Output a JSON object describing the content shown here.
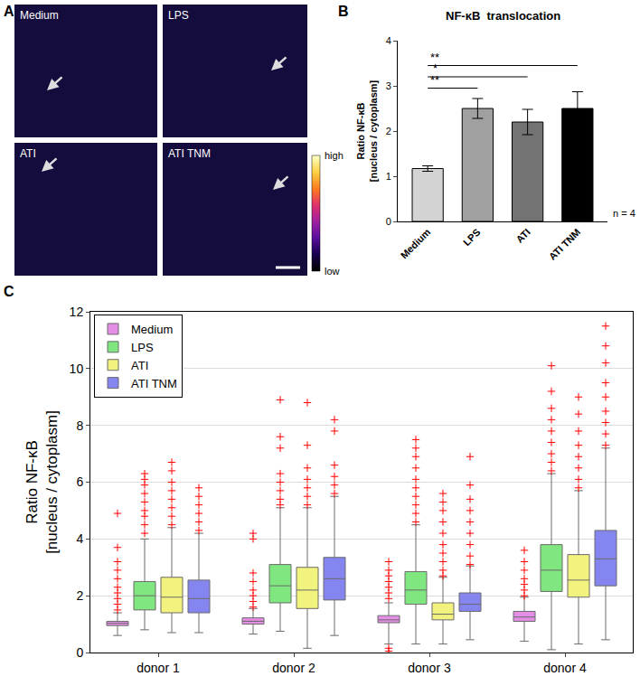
{
  "panel_labels": [
    "A",
    "B",
    "C"
  ],
  "panel_a": {
    "images": [
      {
        "label": "Medium"
      },
      {
        "label": "LPS"
      },
      {
        "label": "ATI"
      },
      {
        "label": "ATI TNM"
      }
    ],
    "colorbar": {
      "colors": [
        "#000000",
        "#1a0050",
        "#5a0f9e",
        "#a020a0",
        "#e0306a",
        "#ff7a20",
        "#ffd040",
        "#ffffc0"
      ],
      "low_label": "low",
      "high_label": "high"
    }
  },
  "chart_data": [
    {
      "type": "bar",
      "title": "NF-κB  translocation",
      "y_label": [
        "Ratio NF-κB",
        "[nucleus / cytoplasm]"
      ],
      "categories": [
        "Medium",
        "LPS",
        "ATI",
        "ATI TNM"
      ],
      "values": [
        1.17,
        2.5,
        2.2,
        2.5
      ],
      "errors": [
        0.06,
        0.22,
        0.28,
        0.37
      ],
      "colors": [
        "#d3d3d3",
        "#a0a0a0",
        "#737373",
        "#000000"
      ],
      "ylim": [
        0,
        4
      ],
      "yticks": [
        0,
        1,
        2,
        3,
        4
      ],
      "grid": false,
      "significance": [
        {
          "from": 0,
          "to": 1,
          "label": "**",
          "y": 2.95
        },
        {
          "from": 0,
          "to": 2,
          "label": "*",
          "y": 3.2
        },
        {
          "from": 0,
          "to": 3,
          "label": "**",
          "y": 3.45
        }
      ],
      "annotations": [
        "n = 4"
      ]
    },
    {
      "type": "box",
      "y_label": [
        "Ratio NF-κB",
        "[nucleus / cytoplasm]"
      ],
      "categories": [
        "donor 1",
        "donor 2",
        "donor 3",
        "donor 4"
      ],
      "ylim": [
        0,
        12
      ],
      "yticks": [
        0,
        2,
        4,
        6,
        8,
        10,
        12
      ],
      "grid": true,
      "legend": "upper left",
      "series": [
        {
          "name": "Medium",
          "color": "#e58ee5",
          "q1": [
            0.95,
            1.0,
            1.05,
            1.1
          ],
          "median": [
            1.03,
            1.1,
            1.15,
            1.25
          ],
          "q3": [
            1.1,
            1.22,
            1.3,
            1.45
          ],
          "lower_whisker": [
            0.6,
            0.65,
            0.3,
            0.4
          ],
          "upper_whisker": [
            1.4,
            1.55,
            1.75,
            1.95
          ],
          "outliers": [
            [
              1.5,
              1.7,
              1.9,
              2.1,
              2.3,
              2.6,
              2.9,
              3.2,
              3.7,
              4.9
            ],
            [
              1.6,
              1.8,
              2.0,
              2.2,
              2.5,
              2.8,
              4.0,
              4.2
            ],
            [
              0.05,
              0.15,
              1.9,
              2.1,
              2.3,
              2.5,
              2.7,
              2.9,
              3.2
            ],
            [
              2.0,
              2.2,
              2.4,
              2.6,
              2.9,
              3.2,
              3.6
            ]
          ]
        },
        {
          "name": "LPS",
          "color": "#80e680",
          "q1": [
            1.5,
            1.75,
            1.7,
            2.15
          ],
          "median": [
            2.0,
            2.35,
            2.2,
            2.9
          ],
          "q3": [
            2.5,
            3.1,
            2.85,
            3.8
          ],
          "lower_whisker": [
            0.8,
            0.75,
            0.3,
            0.1
          ],
          "upper_whisker": [
            4.0,
            5.1,
            4.5,
            6.3
          ],
          "outliers": [
            [
              4.2,
              4.5,
              4.8,
              5.0,
              5.3,
              5.6,
              5.9,
              6.1,
              6.3
            ],
            [
              5.2,
              5.4,
              5.7,
              6.0,
              6.3,
              7.2,
              7.6,
              8.9
            ],
            [
              4.6,
              4.9,
              5.2,
              5.5,
              5.8,
              6.1,
              6.5,
              6.9,
              7.2,
              7.5
            ],
            [
              6.4,
              6.7,
              7.0,
              7.4,
              7.8,
              8.2,
              8.6,
              9.2,
              10.1
            ]
          ]
        },
        {
          "name": "ATI",
          "color": "#f2f27e",
          "q1": [
            1.4,
            1.55,
            1.15,
            1.95
          ],
          "median": [
            1.95,
            2.2,
            1.35,
            2.55
          ],
          "q3": [
            2.65,
            3.0,
            1.75,
            3.45
          ],
          "lower_whisker": [
            0.7,
            0.15,
            0.3,
            0.3
          ],
          "upper_whisker": [
            4.4,
            5.1,
            2.65,
            5.7
          ],
          "outliers": [
            [
              4.5,
              4.8,
              5.1,
              5.4,
              5.7,
              6.0,
              6.4,
              6.7
            ],
            [
              5.2,
              5.5,
              5.8,
              6.1,
              6.5,
              7.3,
              8.8
            ],
            [
              2.7,
              2.9,
              3.2,
              3.5,
              3.8,
              4.2,
              4.6,
              5.0,
              5.3,
              5.6
            ],
            [
              5.8,
              6.1,
              6.5,
              6.9,
              7.3,
              7.8,
              8.4,
              9.0
            ]
          ]
        },
        {
          "name": "ATI TNM",
          "color": "#8585f0",
          "q1": [
            1.4,
            1.85,
            1.45,
            2.35
          ],
          "median": [
            1.9,
            2.6,
            1.7,
            3.3
          ],
          "q3": [
            2.55,
            3.35,
            2.1,
            4.3
          ],
          "lower_whisker": [
            0.7,
            0.6,
            0.45,
            0.45
          ],
          "upper_whisker": [
            4.2,
            5.5,
            3.05,
            7.2
          ],
          "outliers": [
            [
              4.3,
              4.6,
              4.9,
              5.2,
              5.5,
              5.8
            ],
            [
              5.6,
              5.9,
              6.2,
              6.6,
              7.8,
              8.2
            ],
            [
              3.1,
              3.4,
              3.8,
              4.2,
              4.6,
              5.0,
              5.4,
              5.9,
              6.9
            ],
            [
              7.3,
              7.7,
              8.1,
              8.5,
              9.0,
              9.5,
              10.2,
              10.8,
              11.5
            ]
          ]
        }
      ]
    }
  ]
}
